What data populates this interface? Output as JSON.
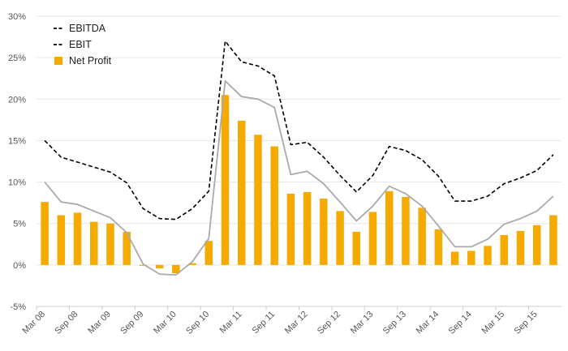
{
  "chart_data": {
    "type": "bar",
    "categories": [
      "Mar 08",
      "Jun 08",
      "Sep 08",
      "Dec 08",
      "Mar 09",
      "Jun 09",
      "Sep 09",
      "Dec 09",
      "Mar 10",
      "Jun 10",
      "Sep 10",
      "Dec 10",
      "Mar 11",
      "Jun 11",
      "Sep 11",
      "Dec 11",
      "Mar 12",
      "Jun 12",
      "Sep 12",
      "Dec 12",
      "Mar 13",
      "Jun 13",
      "Sep 13",
      "Dec 13",
      "Mar 14",
      "Jun 14",
      "Sep 14",
      "Dec 14",
      "Mar 15",
      "Jun 15",
      "Sep 15",
      "Dec 15"
    ],
    "x_tick_labels": [
      "Mar 08",
      "Sep 08",
      "Mar 09",
      "Sep 09",
      "Mar 10",
      "Sep 10",
      "Mar 11",
      "Sep 11",
      "Mar 12",
      "Sep 12",
      "Mar 13",
      "Sep 13",
      "Mar 14",
      "Sep 14",
      "Mar 15",
      "Sep 15"
    ],
    "y_tick_labels": [
      "30%",
      "25%",
      "20%",
      "15%",
      "10%",
      "5%",
      "0%",
      "-5%"
    ],
    "ylim": [
      -5,
      30
    ],
    "y_ticks": [
      30,
      25,
      20,
      15,
      10,
      5,
      0,
      -5
    ],
    "grid": true,
    "legend_position": "top-left",
    "series": [
      {
        "name": "EBITDA",
        "kind": "line",
        "style": "dashed",
        "color": "#000000",
        "values": [
          15.0,
          13.0,
          12.4,
          11.8,
          11.2,
          9.9,
          6.8,
          5.6,
          5.5,
          6.8,
          8.9,
          27.0,
          24.5,
          24.0,
          22.8,
          14.5,
          14.8,
          13.0,
          10.8,
          8.8,
          10.8,
          14.3,
          13.8,
          12.7,
          10.7,
          7.7,
          7.7,
          8.3,
          9.8,
          10.5,
          11.4,
          13.3
        ]
      },
      {
        "name": "EBIT",
        "kind": "line",
        "style": "solid",
        "color": "#aaaaaa",
        "values": [
          10.0,
          7.6,
          7.3,
          6.5,
          5.7,
          3.9,
          0.1,
          -1.1,
          -1.2,
          0.4,
          3.2,
          22.2,
          20.3,
          20.0,
          19.0,
          10.9,
          11.3,
          9.8,
          7.6,
          5.3,
          7.1,
          9.5,
          8.6,
          7.1,
          4.7,
          2.2,
          2.2,
          3.1,
          4.9,
          5.6,
          6.5,
          8.3
        ]
      },
      {
        "name": "Net Profit",
        "kind": "bar",
        "color": "#f5aa00",
        "values": [
          7.6,
          6.0,
          6.3,
          5.2,
          5.0,
          4.0,
          -0.1,
          -0.4,
          -1.0,
          0.2,
          2.9,
          20.5,
          17.4,
          15.7,
          14.3,
          8.6,
          8.8,
          8.0,
          6.5,
          4.0,
          6.4,
          8.9,
          8.2,
          6.9,
          4.3,
          1.6,
          1.7,
          2.3,
          3.6,
          4.1,
          4.8,
          6.0
        ]
      }
    ]
  }
}
